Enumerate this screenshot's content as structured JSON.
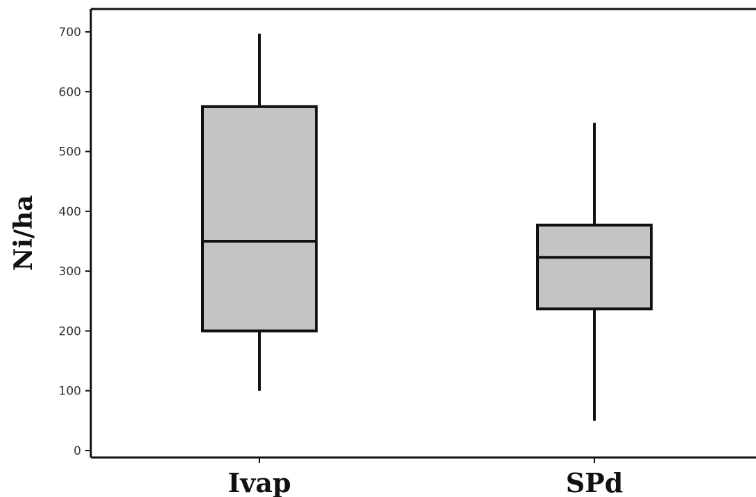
{
  "chart_data": {
    "type": "boxplot",
    "ylabel": "Ni/ha",
    "xlabel": "",
    "ylim": [
      0,
      740
    ],
    "yticks": [
      "0",
      "100",
      "200",
      "300",
      "400",
      "500",
      "600",
      "700"
    ],
    "categories": [
      "Ivap",
      "SPd"
    ],
    "boxes": [
      {
        "category": "Ivap",
        "min": 100,
        "q1": 200,
        "median": 350,
        "q3": 575,
        "max": 697
      },
      {
        "category": "SPd",
        "min": 50,
        "q1": 237,
        "median": 323,
        "q3": 377,
        "max": 548
      }
    ],
    "box_fill": "#c4c3c5",
    "line_color": "#111111",
    "grid": false
  }
}
